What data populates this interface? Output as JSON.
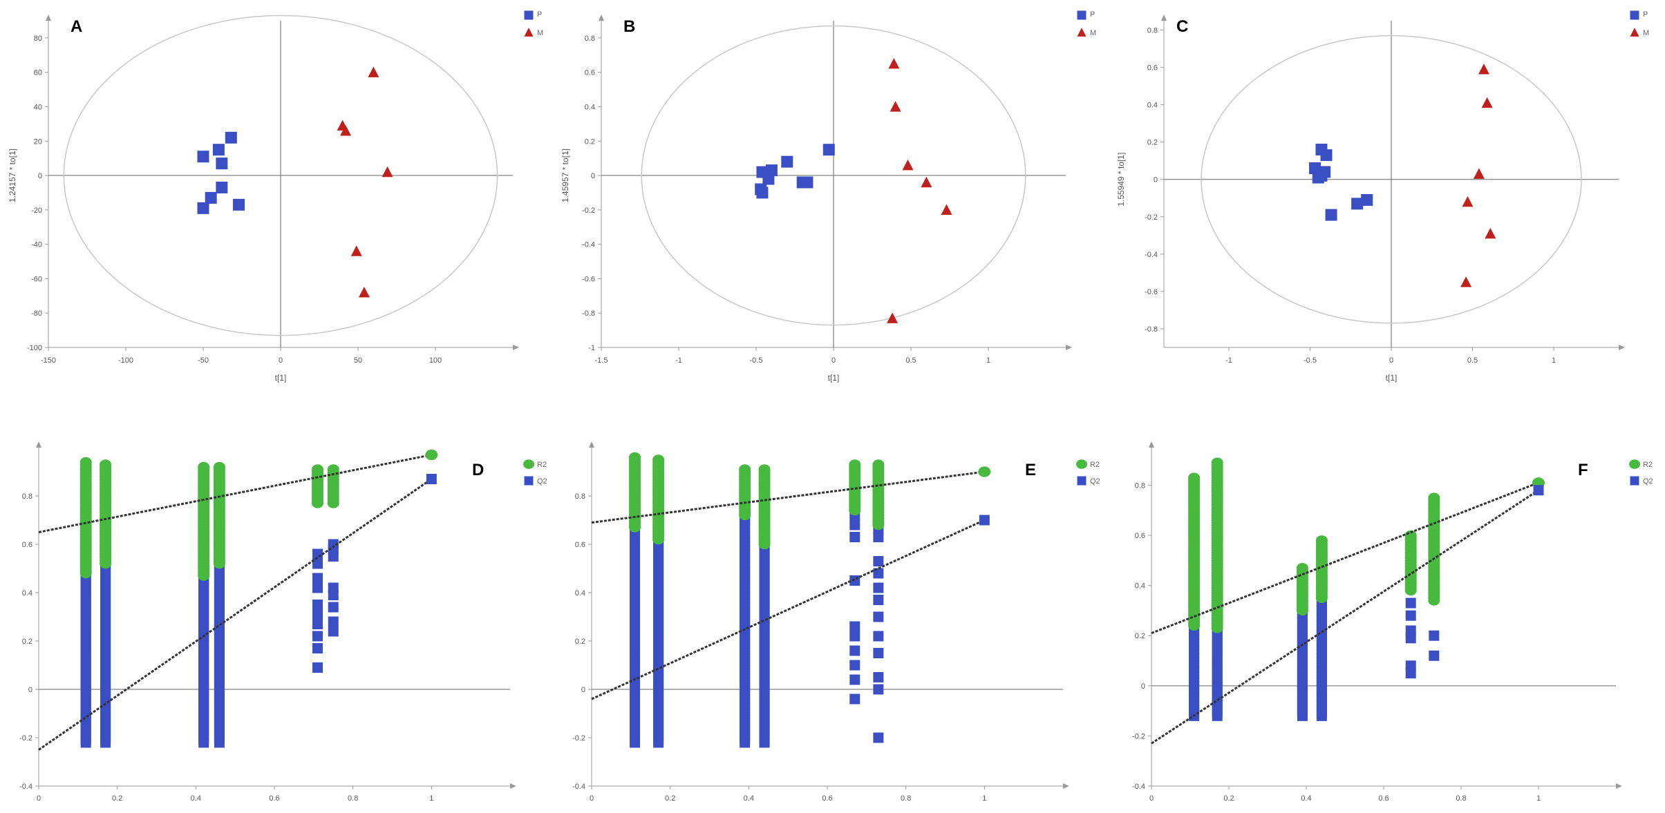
{
  "colors": {
    "p": "#3b4fc4",
    "m": "#c0201c",
    "r2": "#46b93e",
    "q2": "#3b4fc4",
    "axis": "#999999",
    "ellipse": "#c8c8c8",
    "trend": "#333333"
  },
  "chart_data": [
    {
      "type": "scatter",
      "panel": "A",
      "xlabel": "t[1]",
      "ylabel": "1.24157 * to[1]",
      "xlim": [
        -150,
        150
      ],
      "ylim": [
        -100,
        90
      ],
      "xticks": [
        -150,
        -100,
        -50,
        0,
        50,
        100
      ],
      "yticks": [
        -100,
        -80,
        -60,
        -40,
        -20,
        0,
        20,
        40,
        60,
        80
      ],
      "ellipse": {
        "rx": 140,
        "ry": 93
      },
      "legend": [
        "P",
        "M"
      ],
      "series": [
        {
          "name": "P",
          "marker": "square",
          "points": [
            [
              -50,
              11
            ],
            [
              -40,
              15
            ],
            [
              -32,
              22
            ],
            [
              -38,
              7
            ],
            [
              -38,
              -7
            ],
            [
              -45,
              -13
            ],
            [
              -50,
              -19
            ],
            [
              -27,
              -17
            ]
          ]
        },
        {
          "name": "M",
          "marker": "triangle",
          "points": [
            [
              60,
              60
            ],
            [
              40,
              29
            ],
            [
              42,
              26
            ],
            [
              69,
              2
            ],
            [
              49,
              -44
            ],
            [
              54,
              -68
            ]
          ]
        }
      ]
    },
    {
      "type": "scatter",
      "panel": "B",
      "xlabel": "t[1]",
      "ylabel": "1.45957 * to[1]",
      "xlim": [
        -1.5,
        1.5
      ],
      "ylim": [
        -1,
        0.9
      ],
      "xticks": [
        -1.5,
        -1,
        -0.5,
        0,
        0.5,
        1
      ],
      "yticks": [
        -1,
        -0.8,
        -0.6,
        -0.4,
        -0.2,
        0,
        0.2,
        0.4,
        0.6,
        0.8
      ],
      "ellipse": {
        "rx": 1.24,
        "ry": 0.87
      },
      "legend": [
        "P",
        "M"
      ],
      "series": [
        {
          "name": "P",
          "marker": "square",
          "points": [
            [
              -0.03,
              0.15
            ],
            [
              -0.3,
              0.08
            ],
            [
              -0.4,
              0.03
            ],
            [
              -0.46,
              0.02
            ],
            [
              -0.42,
              -0.02
            ],
            [
              -0.2,
              -0.04
            ],
            [
              -0.17,
              -0.04
            ],
            [
              -0.47,
              -0.08
            ],
            [
              -0.46,
              -0.1
            ]
          ]
        },
        {
          "name": "M",
          "marker": "triangle",
          "points": [
            [
              0.39,
              0.65
            ],
            [
              0.4,
              0.4
            ],
            [
              0.48,
              0.06
            ],
            [
              0.6,
              -0.04
            ],
            [
              0.73,
              -0.2
            ],
            [
              0.38,
              -0.83
            ]
          ]
        }
      ]
    },
    {
      "type": "scatter",
      "panel": "C",
      "xlabel": "t[1]",
      "ylabel": "1.55949 * to[1]",
      "xlim": [
        -1.4,
        1.4
      ],
      "ylim": [
        -0.9,
        0.85
      ],
      "xticks": [
        -1,
        -0.5,
        0,
        0.5,
        1
      ],
      "yticks": [
        -0.8,
        -0.6,
        -0.4,
        -0.2,
        0,
        0.2,
        0.4,
        0.6,
        0.8
      ],
      "ellipse": {
        "rx": 1.17,
        "ry": 0.77
      },
      "legend": [
        "P",
        "M"
      ],
      "series": [
        {
          "name": "P",
          "marker": "square",
          "points": [
            [
              -0.43,
              0.16
            ],
            [
              -0.4,
              0.13
            ],
            [
              -0.47,
              0.06
            ],
            [
              -0.41,
              0.04
            ],
            [
              -0.43,
              0.02
            ],
            [
              -0.45,
              0.01
            ],
            [
              -0.15,
              -0.11
            ],
            [
              -0.21,
              -0.13
            ],
            [
              -0.37,
              -0.19
            ]
          ]
        },
        {
          "name": "M",
          "marker": "triangle",
          "points": [
            [
              0.57,
              0.59
            ],
            [
              0.59,
              0.41
            ],
            [
              0.54,
              0.03
            ],
            [
              0.47,
              -0.12
            ],
            [
              0.61,
              -0.29
            ],
            [
              0.46,
              -0.55
            ]
          ]
        }
      ]
    },
    {
      "type": "scatter",
      "panel": "D",
      "kind": "permutation",
      "xlabel": "",
      "ylabel": "",
      "xlim": [
        0,
        1.2
      ],
      "ylim": [
        -0.4,
        1.0
      ],
      "xticks": [
        0,
        0.2,
        0.4,
        0.6,
        0.8,
        1
      ],
      "yticks": [
        -0.4,
        -0.2,
        0,
        0.2,
        0.4,
        0.6,
        0.8
      ],
      "legend": [
        "R2",
        "Q2"
      ],
      "r2_intercept": 0.65,
      "q2_intercept": -0.25,
      "r2_original": [
        1,
        0.97
      ],
      "q2_original": [
        1,
        0.87
      ],
      "columns": [
        {
          "x": 0.12,
          "r2": [
            0.48,
            0.94
          ],
          "q2": [
            -0.22,
            0.77
          ]
        },
        {
          "x": 0.17,
          "r2": [
            0.52,
            0.93
          ],
          "q2": [
            -0.22,
            0.55
          ]
        },
        {
          "x": 0.42,
          "r2": [
            0.47,
            0.92
          ],
          "q2": [
            -0.22,
            0.72
          ]
        },
        {
          "x": 0.46,
          "r2": [
            0.52,
            0.92
          ],
          "q2": [
            -0.22,
            0.59
          ]
        },
        {
          "x": 0.71,
          "r2": [
            0.77,
            0.91
          ],
          "q2_points": [
            0.09,
            0.17,
            0.22,
            0.27,
            0.31,
            0.35,
            0.42,
            0.46,
            0.52,
            0.56
          ]
        },
        {
          "x": 0.75,
          "r2": [
            0.77,
            0.91
          ],
          "q2_points": [
            0.24,
            0.28,
            0.34,
            0.39,
            0.42,
            0.55,
            0.58,
            0.6
          ]
        }
      ]
    },
    {
      "type": "scatter",
      "panel": "E",
      "kind": "permutation",
      "xlabel": "",
      "ylabel": "",
      "xlim": [
        0,
        1.2
      ],
      "ylim": [
        -0.4,
        1.0
      ],
      "xticks": [
        0,
        0.2,
        0.4,
        0.6,
        0.8,
        1
      ],
      "yticks": [
        -0.4,
        -0.2,
        0,
        0.2,
        0.4,
        0.6,
        0.8
      ],
      "legend": [
        "R2",
        "Q2"
      ],
      "r2_intercept": 0.69,
      "q2_intercept": -0.04,
      "r2_original": [
        1,
        0.9
      ],
      "q2_original": [
        1,
        0.7
      ],
      "columns": [
        {
          "x": 0.11,
          "r2": [
            0.67,
            0.96
          ],
          "q2": [
            -0.22,
            0.72
          ]
        },
        {
          "x": 0.17,
          "r2": [
            0.62,
            0.95
          ],
          "q2": [
            -0.22,
            0.79
          ]
        },
        {
          "x": 0.39,
          "r2": [
            0.72,
            0.91
          ],
          "q2": [
            -0.22,
            0.8
          ]
        },
        {
          "x": 0.44,
          "r2": [
            0.6,
            0.91
          ],
          "q2": [
            -0.22,
            0.76
          ]
        },
        {
          "x": 0.67,
          "r2": [
            0.74,
            0.93
          ],
          "q2_points": [
            -0.04,
            0.04,
            0.1,
            0.16,
            0.22,
            0.26,
            0.45,
            0.63,
            0.68,
            0.72
          ]
        },
        {
          "x": 0.73,
          "r2": [
            0.68,
            0.93
          ],
          "q2_points": [
            -0.2,
            0.0,
            0.05,
            0.15,
            0.22,
            0.3,
            0.37,
            0.42,
            0.48,
            0.53,
            0.63,
            0.66,
            0.74
          ]
        }
      ]
    },
    {
      "type": "scatter",
      "panel": "F",
      "kind": "permutation",
      "xlabel": "",
      "ylabel": "",
      "xlim": [
        0,
        1.2
      ],
      "ylim": [
        -0.4,
        0.95
      ],
      "xticks": [
        0,
        0.2,
        0.4,
        0.6,
        0.8,
        1
      ],
      "yticks": [
        -0.4,
        -0.2,
        0,
        0.2,
        0.4,
        0.6,
        0.8
      ],
      "legend": [
        "R2",
        "Q2"
      ],
      "r2_intercept": 0.21,
      "q2_intercept": -0.23,
      "r2_original": [
        1,
        0.81
      ],
      "q2_original": [
        1,
        0.78
      ],
      "columns": [
        {
          "x": 0.11,
          "r2": [
            0.24,
            0.83
          ],
          "q2": [
            -0.12,
            0.46
          ]
        },
        {
          "x": 0.17,
          "r2": [
            0.23,
            0.89
          ],
          "q2": [
            -0.12,
            0.27
          ]
        },
        {
          "x": 0.39,
          "r2": [
            0.3,
            0.47
          ],
          "q2": [
            -0.12,
            0.36
          ]
        },
        {
          "x": 0.44,
          "r2": [
            0.35,
            0.58
          ],
          "q2": [
            -0.12,
            0.51
          ]
        },
        {
          "x": 0.67,
          "r2": [
            0.38,
            0.6
          ],
          "q2_points": [
            0.05,
            0.08,
            0.19,
            0.22,
            0.28,
            0.33,
            0.4,
            0.46,
            0.53,
            0.56
          ]
        },
        {
          "x": 0.73,
          "r2": [
            0.34,
            0.75
          ],
          "q2_points": [
            0.12,
            0.2,
            0.56,
            0.62,
            0.66,
            0.7
          ]
        }
      ]
    }
  ]
}
